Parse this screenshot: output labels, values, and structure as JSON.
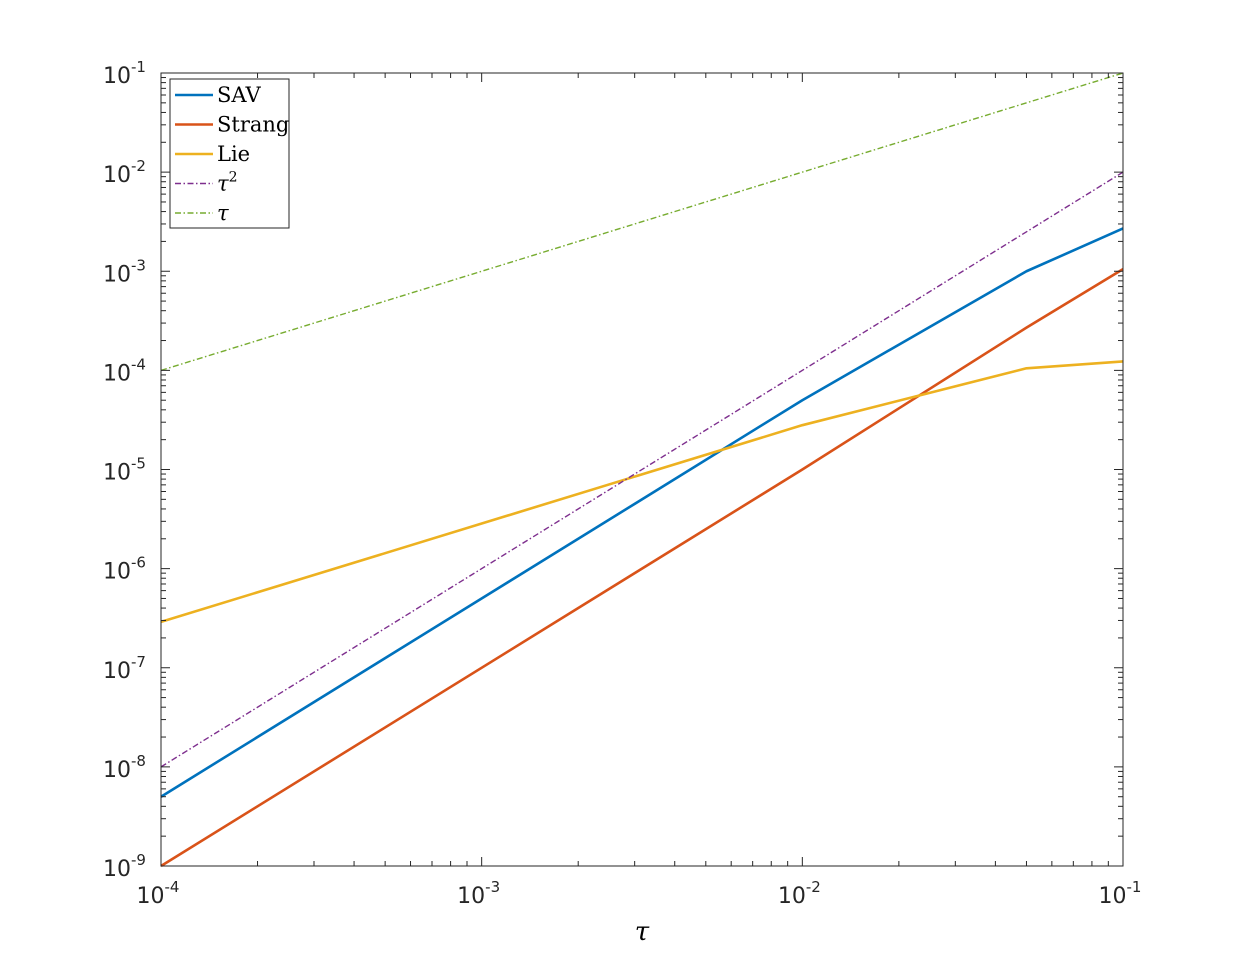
{
  "chart_data": {
    "type": "line",
    "xscale": "log",
    "yscale": "log",
    "xlim": [
      0.0001,
      0.1
    ],
    "ylim": [
      1e-09,
      0.1
    ],
    "xlabel": "τ",
    "xticks": [
      {
        "base": "10",
        "exp": "-4",
        "value": 0.0001
      },
      {
        "base": "10",
        "exp": "-3",
        "value": 0.001
      },
      {
        "base": "10",
        "exp": "-2",
        "value": 0.01
      },
      {
        "base": "10",
        "exp": "-1",
        "value": 0.1
      }
    ],
    "yticks": [
      {
        "base": "10",
        "exp": "-9",
        "value": 1e-09
      },
      {
        "base": "10",
        "exp": "-8",
        "value": 1e-08
      },
      {
        "base": "10",
        "exp": "-7",
        "value": 1e-07
      },
      {
        "base": "10",
        "exp": "-6",
        "value": 1e-06
      },
      {
        "base": "10",
        "exp": "-5",
        "value": 1e-05
      },
      {
        "base": "10",
        "exp": "-4",
        "value": 0.0001
      },
      {
        "base": "10",
        "exp": "-3",
        "value": 0.001
      },
      {
        "base": "10",
        "exp": "-2",
        "value": 0.01
      },
      {
        "base": "10",
        "exp": "-1",
        "value": 0.1
      }
    ],
    "grid": false,
    "legend_position": "top-left",
    "series": [
      {
        "name": "SAV",
        "label": "SAV",
        "label_sup": "",
        "color": "#0072BD",
        "dash": "solid",
        "x": [
          0.0001,
          0.01,
          0.05,
          0.1
        ],
        "y": [
          5e-09,
          5e-05,
          0.001,
          0.0027
        ]
      },
      {
        "name": "Strang",
        "label": "Strang",
        "label_sup": "",
        "color": "#D95319",
        "dash": "solid",
        "x": [
          0.0001,
          0.01,
          0.05,
          0.1
        ],
        "y": [
          1e-09,
          1e-05,
          0.00027,
          0.00105
        ]
      },
      {
        "name": "Lie",
        "label": "Lie",
        "label_sup": "",
        "color": "#EDB120",
        "dash": "solid",
        "x": [
          0.0001,
          0.01,
          0.05,
          0.1
        ],
        "y": [
          2.9e-07,
          2.8e-05,
          0.000105,
          0.000123
        ]
      },
      {
        "name": "τ^2",
        "label": "τ",
        "label_sup": "2",
        "color": "#7E2F8E",
        "dash": "dashdot",
        "x": [
          0.0001,
          0.1
        ],
        "y": [
          1e-08,
          0.01
        ]
      },
      {
        "name": "τ",
        "label": "τ",
        "label_sup": "",
        "color": "#77AC30",
        "dash": "dashdot",
        "x": [
          0.0001,
          0.1
        ],
        "y": [
          0.0001,
          0.1
        ]
      }
    ]
  }
}
